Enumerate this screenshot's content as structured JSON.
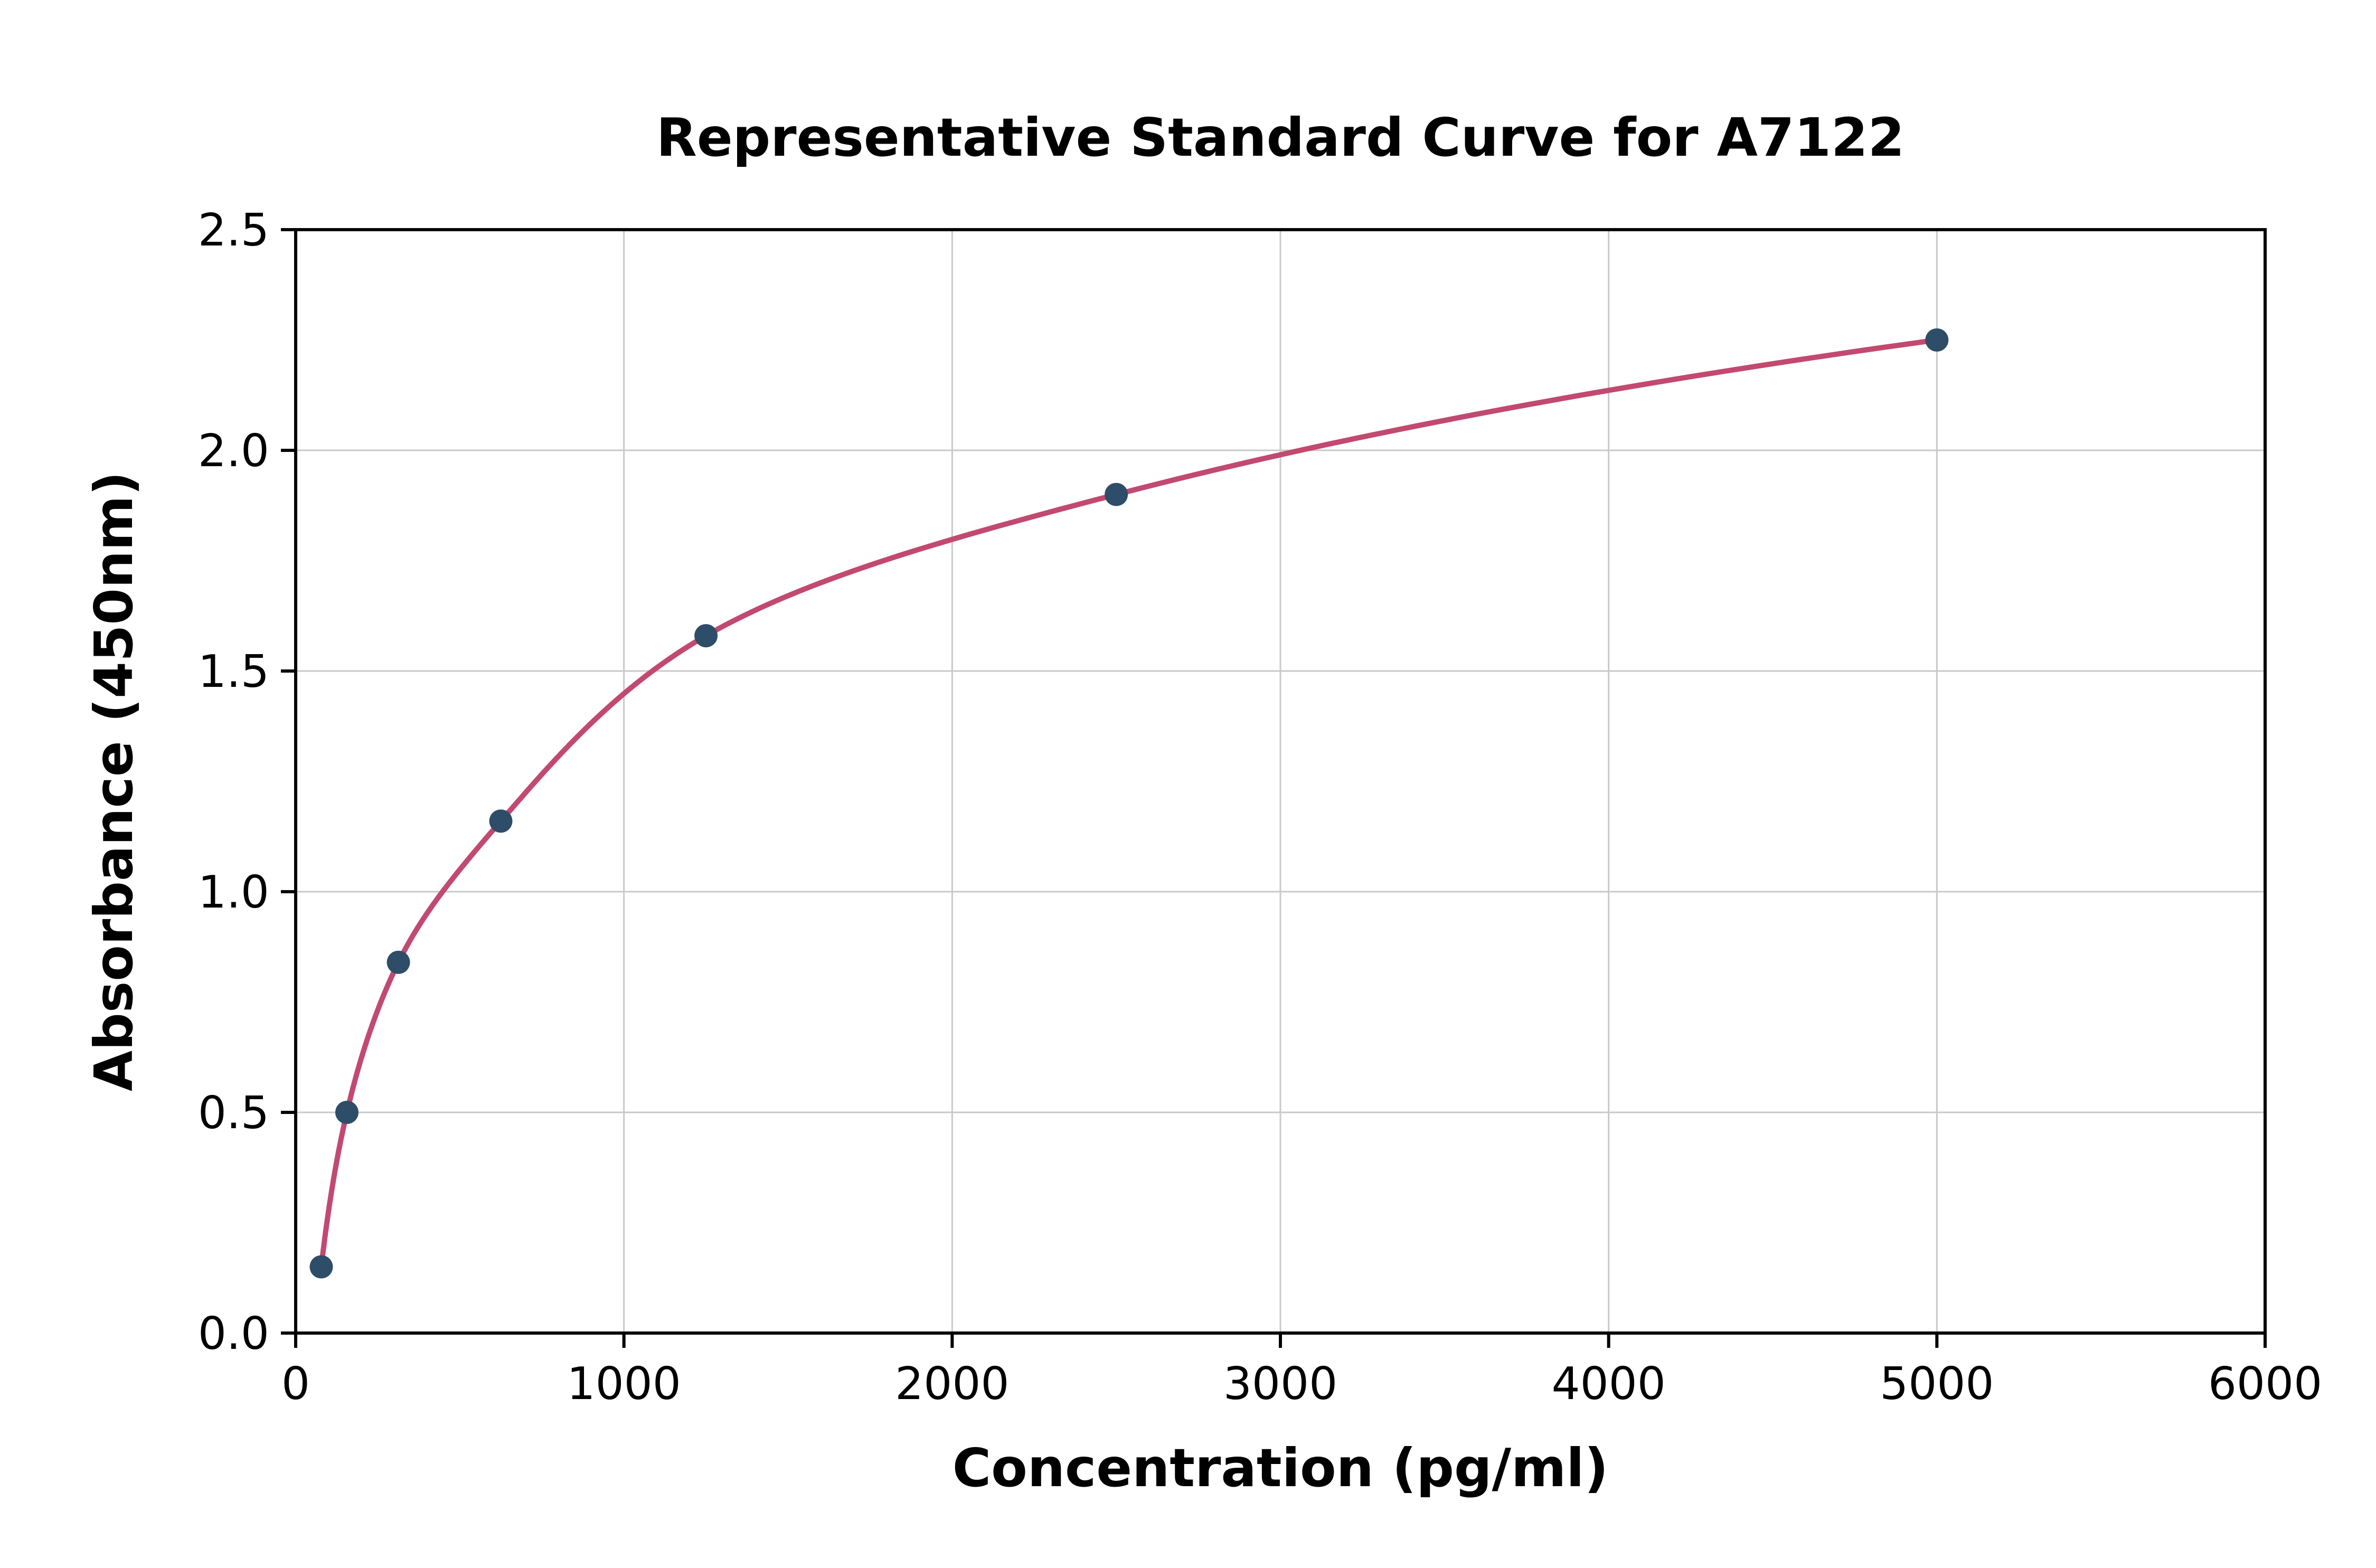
{
  "chart_data": {
    "type": "scatter",
    "title": "Representative Standard Curve for A7122",
    "xlabel": "Concentration (pg/ml)",
    "ylabel": "Absorbance (450nm)",
    "xlim": [
      0,
      6000
    ],
    "ylim": [
      0,
      2.5
    ],
    "x_ticks": [
      0,
      1000,
      2000,
      3000,
      4000,
      5000,
      6000
    ],
    "x_tick_labels": [
      "0",
      "1000",
      "2000",
      "3000",
      "4000",
      "5000",
      "6000"
    ],
    "y_ticks": [
      0,
      0.5,
      1.0,
      1.5,
      2.0,
      2.5
    ],
    "y_tick_labels": [
      "0.0",
      "0.5",
      "1.0",
      "1.5",
      "2.0",
      "2.5"
    ],
    "grid": true,
    "legend": "none",
    "series": [
      {
        "name": "standard-points",
        "style": "scatter",
        "color": "#2e4d68",
        "points": [
          {
            "x": 78,
            "y": 0.15
          },
          {
            "x": 156,
            "y": 0.5
          },
          {
            "x": 313,
            "y": 0.84
          },
          {
            "x": 625,
            "y": 1.16
          },
          {
            "x": 1250,
            "y": 1.58
          },
          {
            "x": 2500,
            "y": 1.9
          },
          {
            "x": 5000,
            "y": 2.25
          }
        ]
      },
      {
        "name": "fitted-curve",
        "style": "line",
        "color": "#c24970",
        "points": [
          {
            "x": 78,
            "y": 0.15
          },
          {
            "x": 156,
            "y": 0.5
          },
          {
            "x": 313,
            "y": 0.84
          },
          {
            "x": 625,
            "y": 1.16
          },
          {
            "x": 1250,
            "y": 1.58
          },
          {
            "x": 2500,
            "y": 1.9
          },
          {
            "x": 5000,
            "y": 2.25
          }
        ]
      }
    ],
    "colors": {
      "grid": "#c9c9c9",
      "spine": "#000000",
      "background": "#ffffff",
      "curve": "#c24970",
      "point": "#2e4d68"
    }
  }
}
